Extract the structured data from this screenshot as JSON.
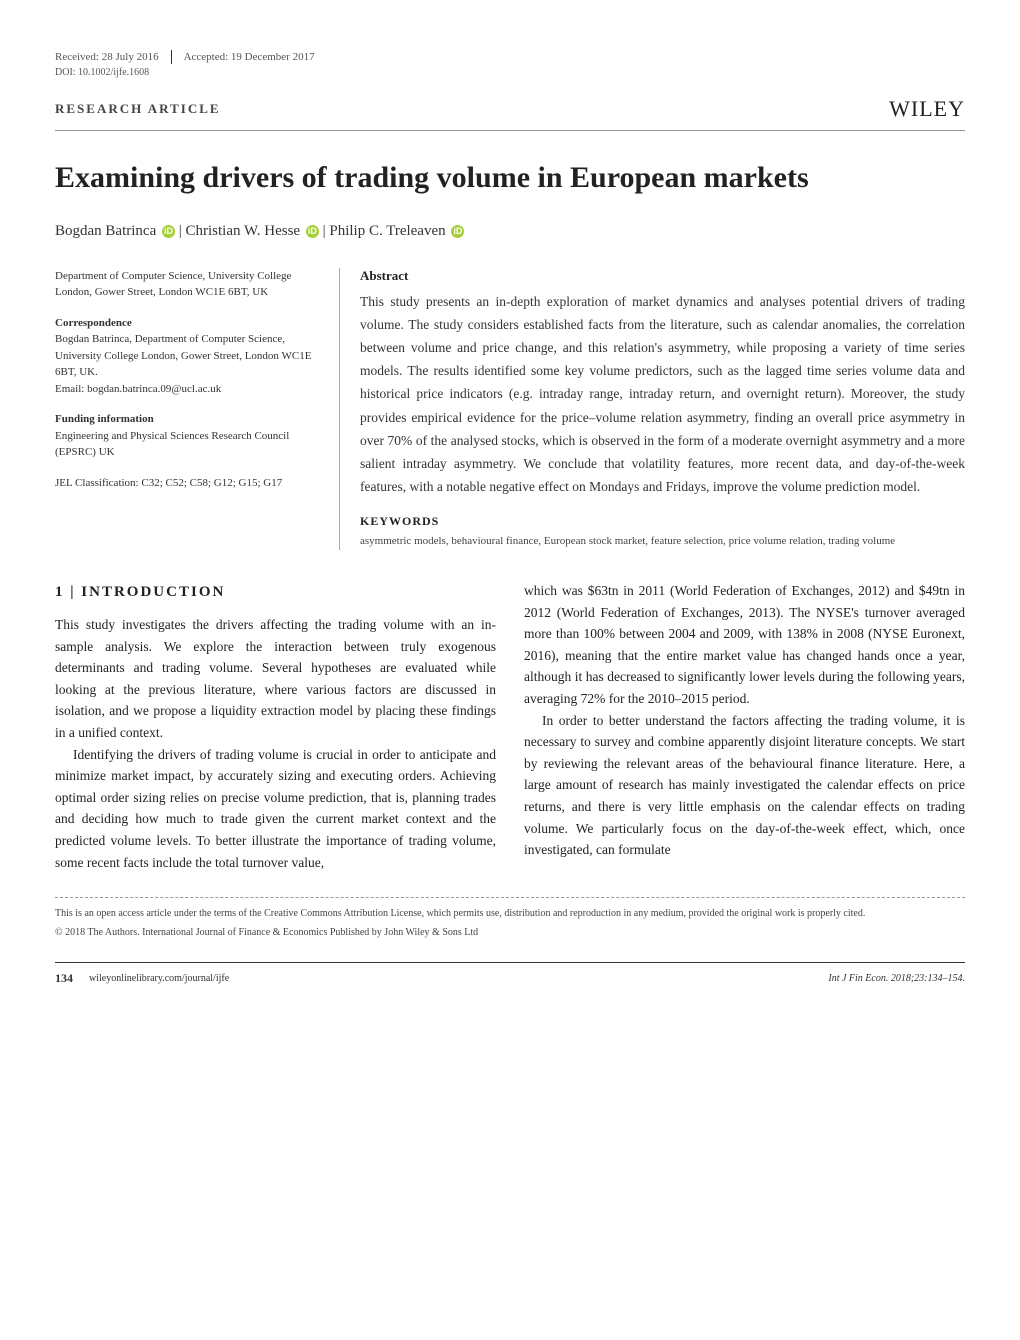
{
  "header": {
    "received": "Received: 28 July 2016",
    "accepted": "Accepted: 19 December 2017",
    "doi": "DOI: 10.1002/ijfe.1608"
  },
  "article_type": "RESEARCH ARTICLE",
  "publisher": "WILEY",
  "title": "Examining drivers of trading volume in European markets",
  "authors": {
    "a1": "Bogdan Batrinca",
    "a2": "Christian W. Hesse",
    "a3": "Philip C. Treleaven",
    "sep": " | "
  },
  "meta": {
    "affiliation": "Department of Computer Science, University College London, Gower Street, London WC1E 6BT, UK",
    "correspondence_heading": "Correspondence",
    "correspondence": "Bogdan Batrinca, Department of Computer Science, University College London, Gower Street, London WC1E 6BT, UK.",
    "email_label": "Email: ",
    "email": "bogdan.batrinca.09@ucl.ac.uk",
    "funding_heading": "Funding information",
    "funding": "Engineering and Physical Sciences Research Council (EPSRC) UK",
    "jel_label": "JEL Classification: ",
    "jel": "C32; C52; C58; G12; G15; G17"
  },
  "abstract": {
    "heading": "Abstract",
    "text": "This study presents an in-depth exploration of market dynamics and analyses potential drivers of trading volume. The study considers established facts from the literature, such as calendar anomalies, the correlation between volume and price change, and this relation's asymmetry, while proposing a variety of time series models. The results identified some key volume predictors, such as the lagged time series volume data and historical price indicators (e.g. intraday range, intraday return, and overnight return). Moreover, the study provides empirical evidence for the price–volume relation asymmetry, finding an overall price asymmetry in over 70% of the analysed stocks, which is observed in the form of a moderate overnight asymmetry and a more salient intraday asymmetry. We conclude that volatility features, more recent data, and day-of-the-week features, with a notable negative effect on Mondays and Fridays, improve the volume prediction model.",
    "keywords_heading": "KEYWORDS",
    "keywords": "asymmetric models, behavioural finance, European stock market, feature selection, price volume relation, trading volume"
  },
  "section1": {
    "heading": "1 | INTRODUCTION",
    "left_p1": "This study investigates the drivers affecting the trading volume with an in-sample analysis. We explore the interaction between truly exogenous determinants and trading volume. Several hypotheses are evaluated while looking at the previous literature, where various factors are discussed in isolation, and we propose a liquidity extraction model by placing these findings in a unified context.",
    "left_p2": "Identifying the drivers of trading volume is crucial in order to anticipate and minimize market impact, by accurately sizing and executing orders. Achieving optimal order sizing relies on precise volume prediction, that is, planning trades and deciding how much to trade given the current market context and the predicted volume levels. To better illustrate the importance of trading volume, some recent facts include the total turnover value,",
    "right_p1": "which was $63tn in 2011 (World Federation of Exchanges, 2012) and $49tn in 2012 (World Federation of Exchanges, 2013). The NYSE's turnover averaged more than 100% between 2004 and 2009, with 138% in 2008 (NYSE Euronext, 2016), meaning that the entire market value has changed hands once a year, although it has decreased to significantly lower levels during the following years, averaging 72% for the 2010–2015 period.",
    "right_p2": "In order to better understand the factors affecting the trading volume, it is necessary to survey and combine apparently disjoint literature concepts. We start by reviewing the relevant areas of the behavioural finance literature. Here, a large amount of research has mainly investigated the calendar effects on price returns, and there is very little emphasis on the calendar effects on trading volume. We particularly focus on the day-of-the-week effect, which, once investigated, can formulate"
  },
  "license": "This is an open access article under the terms of the Creative Commons Attribution License, which permits use, distribution and reproduction in any medium, provided the original work is properly cited.",
  "copyright": "© 2018 The Authors. International Journal of Finance & Economics Published by John Wiley & Sons Ltd",
  "footer": {
    "page": "134",
    "url": "wileyonlinelibrary.com/journal/ijfe",
    "citation": "Int J Fin Econ. 2018;23:134–154."
  },
  "colors": {
    "text": "#333333",
    "bg": "#ffffff",
    "rule": "#999999",
    "orcid_bg": "#a6ce39"
  }
}
